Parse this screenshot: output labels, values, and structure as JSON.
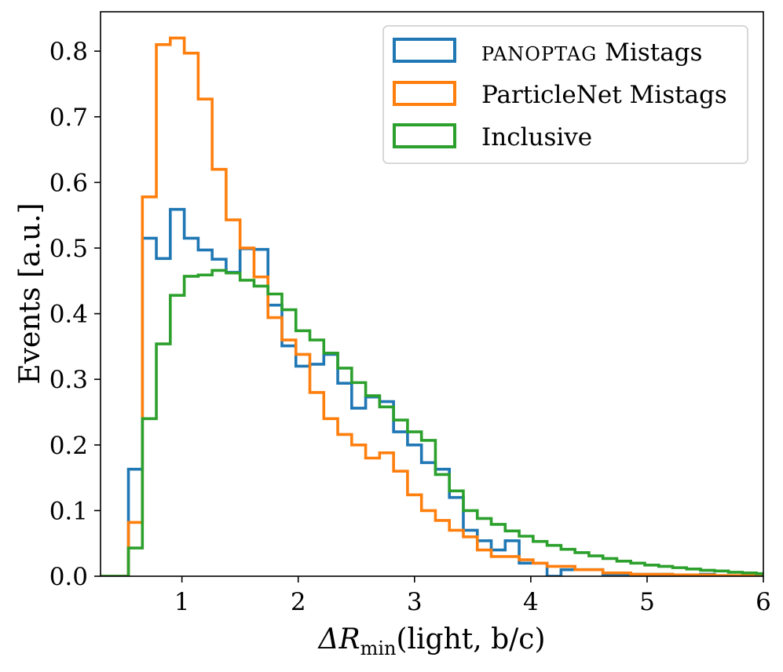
{
  "chart_data": {
    "type": "histogram",
    "style": "step",
    "xlabel": "ΔR",
    "xlabel_sub": "min",
    "xlabel_arg": "(light, b/c)",
    "ylabel": "Events [a.u.]",
    "xlim": [
      0.3,
      6.0
    ],
    "ylim": [
      0.0,
      0.86
    ],
    "x_ticks": [
      1,
      2,
      3,
      4,
      5,
      6
    ],
    "y_ticks": [
      0.0,
      0.1,
      0.2,
      0.3,
      0.4,
      0.5,
      0.6,
      0.7,
      0.8
    ],
    "grid": false,
    "legend_position": "top-right",
    "bin_edges": [
      0.3,
      0.42,
      0.54,
      0.66,
      0.78,
      0.9,
      1.02,
      1.14,
      1.26,
      1.38,
      1.5,
      1.62,
      1.74,
      1.86,
      1.98,
      2.1,
      2.22,
      2.34,
      2.46,
      2.58,
      2.7,
      2.82,
      2.94,
      3.06,
      3.18,
      3.3,
      3.42,
      3.54,
      3.66,
      3.78,
      3.9,
      4.02,
      4.14,
      4.26,
      4.38,
      4.5,
      4.62,
      4.74,
      4.86,
      4.98,
      5.1,
      5.22,
      5.34,
      5.46,
      5.58,
      5.7,
      5.82,
      5.94,
      6.0
    ],
    "series": [
      {
        "name": "Mistags",
        "name_smallcaps": "PanopTag",
        "color": "#1f77b4",
        "values": [
          0.0,
          0.0,
          0.163,
          0.515,
          0.484,
          0.559,
          0.515,
          0.497,
          0.483,
          0.463,
          0.499,
          0.498,
          0.413,
          0.351,
          0.32,
          0.323,
          0.338,
          0.294,
          0.256,
          0.273,
          0.266,
          0.22,
          0.2,
          0.173,
          0.163,
          0.12,
          0.07,
          0.054,
          0.04,
          0.054,
          0.02,
          0.02,
          0.0,
          0.01,
          0.01,
          0.01,
          0.003,
          0.003,
          0.003,
          0.003,
          0.003,
          0.0,
          0.0,
          0.003,
          0.0,
          0.0,
          0.0,
          0.0
        ]
      },
      {
        "name": "ParticleNet Mistags",
        "color": "#ff7f0e",
        "values": [
          0.0,
          0.0,
          0.082,
          0.578,
          0.81,
          0.82,
          0.797,
          0.727,
          0.62,
          0.543,
          0.5,
          0.456,
          0.394,
          0.36,
          0.338,
          0.28,
          0.24,
          0.216,
          0.2,
          0.18,
          0.188,
          0.16,
          0.124,
          0.1,
          0.085,
          0.07,
          0.06,
          0.04,
          0.03,
          0.03,
          0.025,
          0.02,
          0.015,
          0.015,
          0.01,
          0.01,
          0.005,
          0.005,
          0.003,
          0.003,
          0.003,
          0.002,
          0.002,
          0.002,
          0.001,
          0.001,
          0.001,
          0.001
        ]
      },
      {
        "name": "Inclusive",
        "color": "#2ca02c",
        "values": [
          0.0,
          0.0,
          0.043,
          0.24,
          0.354,
          0.428,
          0.457,
          0.459,
          0.466,
          0.462,
          0.451,
          0.442,
          0.43,
          0.406,
          0.374,
          0.36,
          0.34,
          0.317,
          0.295,
          0.275,
          0.258,
          0.238,
          0.22,
          0.207,
          0.155,
          0.13,
          0.1,
          0.088,
          0.079,
          0.069,
          0.061,
          0.053,
          0.047,
          0.041,
          0.036,
          0.031,
          0.027,
          0.023,
          0.02,
          0.017,
          0.015,
          0.013,
          0.011,
          0.009,
          0.008,
          0.006,
          0.005,
          0.004
        ]
      }
    ]
  }
}
